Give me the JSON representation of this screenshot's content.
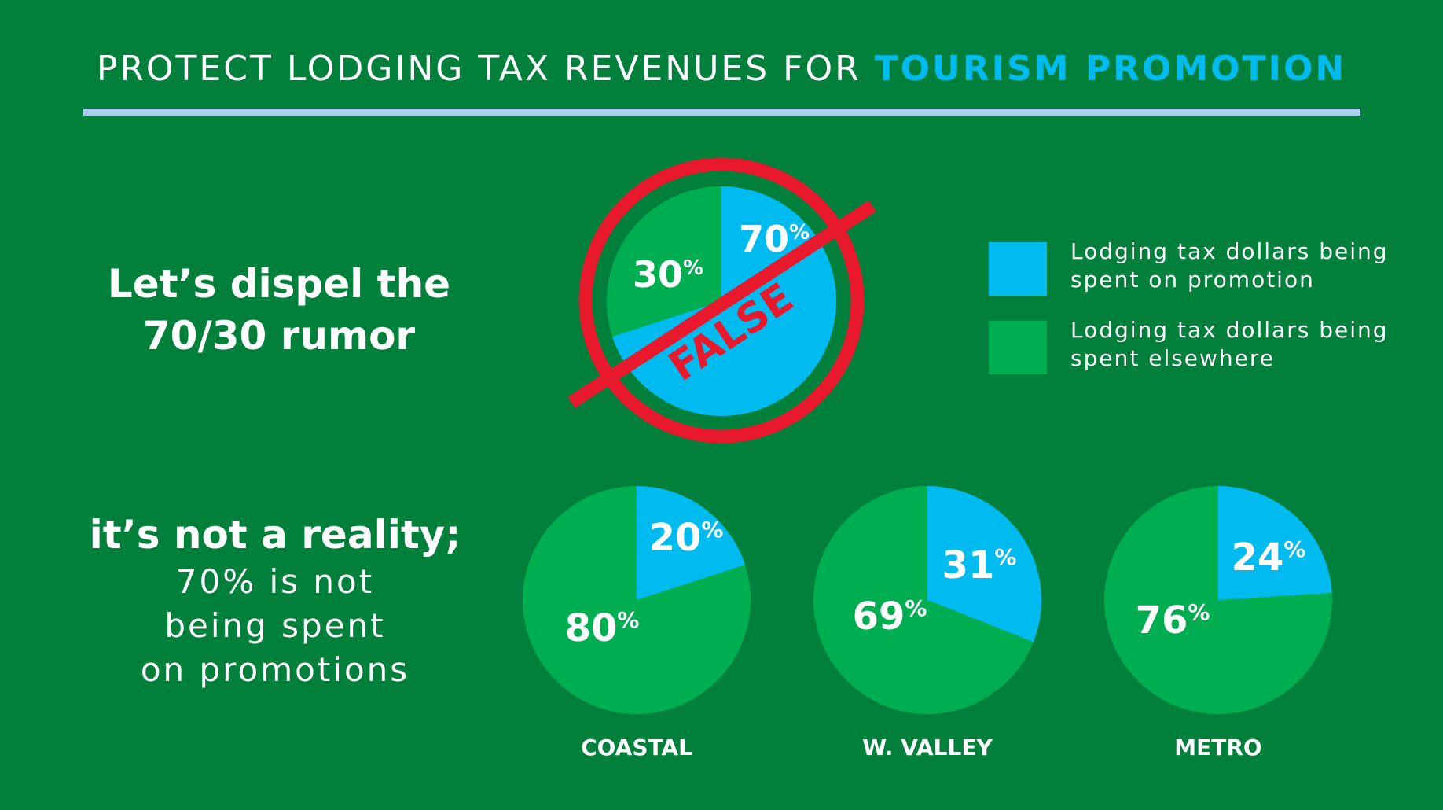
{
  "title": {
    "plain": "PROTECT LODGING TAX REVENUES FOR ",
    "accent": "TOURISM PROMOTION"
  },
  "colors": {
    "background": "#00803b",
    "promotion": "#00bbf0",
    "elsewhere": "#00ae52",
    "false_mark": "#e8192c",
    "rule": "#a6d0ee",
    "accent_text": "#00bbf0"
  },
  "headline": {
    "line1": "Let’s dispel the",
    "line2": "70/30 rumor"
  },
  "subtext": {
    "strong": "it’s not a reality;",
    "line1": "70% is not",
    "line2": "being spent",
    "line3": "on promotions"
  },
  "legend": {
    "promotion": {
      "line1": "Lodging tax dollars being",
      "line2": "spent on promotion"
    },
    "elsewhere": {
      "line1": "Lodging tax dollars being",
      "line2": "spent elsewhere"
    }
  },
  "stamp_text": "FALSE",
  "chart_data": [
    {
      "type": "pie",
      "role": "rumor",
      "slices": [
        {
          "label": "70%",
          "display": "70",
          "value": 70,
          "series": "promotion"
        },
        {
          "label": "30%",
          "display": "30",
          "value": 30,
          "series": "elsewhere"
        }
      ]
    },
    {
      "type": "pie",
      "title": "COASTAL",
      "slices": [
        {
          "label": "20%",
          "display": "20",
          "value": 20,
          "series": "promotion"
        },
        {
          "label": "80%",
          "display": "80",
          "value": 80,
          "series": "elsewhere"
        }
      ]
    },
    {
      "type": "pie",
      "title": "W. VALLEY",
      "slices": [
        {
          "label": "31%",
          "display": "31",
          "value": 31,
          "series": "promotion"
        },
        {
          "label": "69%",
          "display": "69",
          "value": 69,
          "series": "elsewhere"
        }
      ]
    },
    {
      "type": "pie",
      "title": "METRO",
      "slices": [
        {
          "label": "24%",
          "display": "24",
          "value": 24,
          "series": "promotion"
        },
        {
          "label": "76%",
          "display": "76",
          "value": 76,
          "series": "elsewhere"
        }
      ]
    }
  ]
}
